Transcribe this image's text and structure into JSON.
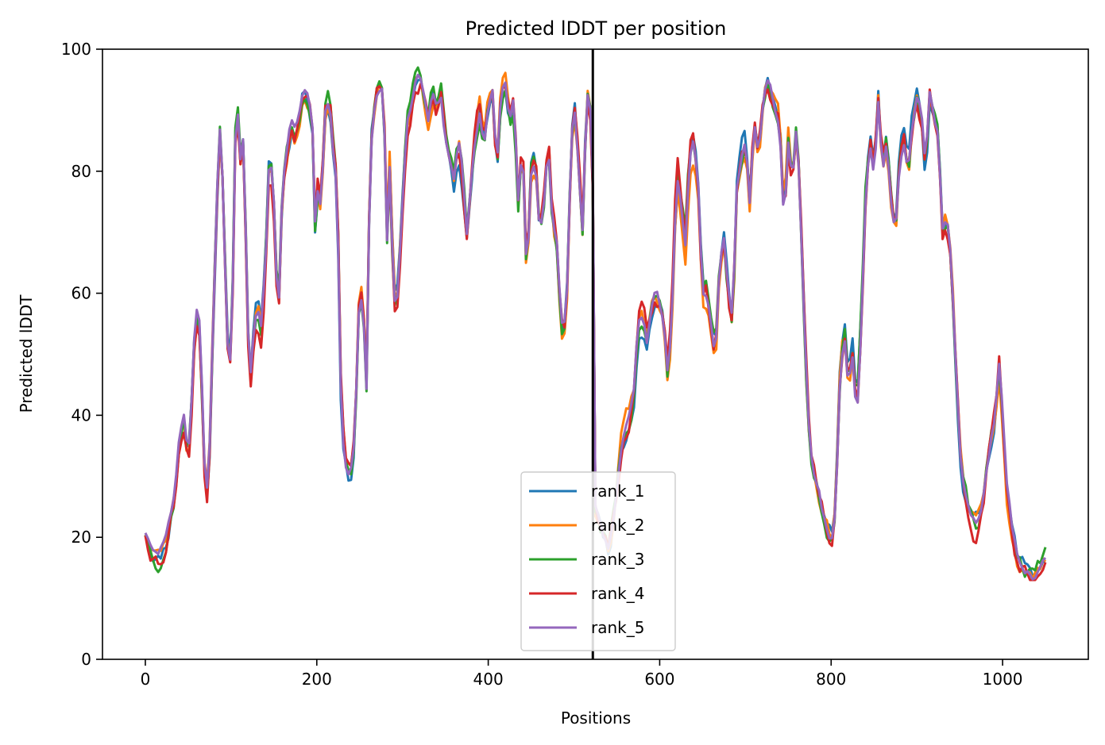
{
  "chart_data": {
    "type": "line",
    "title": "Predicted lDDT per position",
    "xlabel": "Positions",
    "ylabel": "Predicted lDDT",
    "xlim": [
      -50,
      1100
    ],
    "ylim": [
      0,
      100
    ],
    "x_ticks": [
      0,
      200,
      400,
      600,
      800,
      1000
    ],
    "y_ticks": [
      0,
      20,
      40,
      60,
      80,
      100
    ],
    "chain_boundary_x": 522,
    "legend_placement": "lower-center",
    "grid": false,
    "colors": {
      "rank_1": "#1f77b4",
      "rank_2": "#ff7f0e",
      "rank_3": "#2ca02c",
      "rank_4": "#d62728",
      "rank_5": "#9467bd",
      "boundary": "#000000"
    },
    "base_profile": [
      [
        0,
        21
      ],
      [
        5,
        19
      ],
      [
        10,
        18
      ],
      [
        15,
        17
      ],
      [
        20,
        18
      ],
      [
        25,
        20
      ],
      [
        30,
        24
      ],
      [
        35,
        28
      ],
      [
        40,
        37
      ],
      [
        45,
        40
      ],
      [
        50,
        33
      ],
      [
        55,
        45
      ],
      [
        58,
        56
      ],
      [
        62,
        58
      ],
      [
        65,
        50
      ],
      [
        68,
        33
      ],
      [
        72,
        28
      ],
      [
        75,
        35
      ],
      [
        80,
        60
      ],
      [
        85,
        82
      ],
      [
        88,
        88
      ],
      [
        92,
        70
      ],
      [
        95,
        55
      ],
      [
        98,
        45
      ],
      [
        102,
        62
      ],
      [
        105,
        86
      ],
      [
        108,
        90
      ],
      [
        112,
        80
      ],
      [
        115,
        88
      ],
      [
        118,
        62
      ],
      [
        122,
        45
      ],
      [
        125,
        52
      ],
      [
        130,
        58
      ],
      [
        135,
        55
      ],
      [
        140,
        65
      ],
      [
        145,
        85
      ],
      [
        150,
        75
      ],
      [
        155,
        55
      ],
      [
        160,
        78
      ],
      [
        165,
        83
      ],
      [
        170,
        88
      ],
      [
        175,
        86
      ],
      [
        180,
        90
      ],
      [
        185,
        94
      ],
      [
        190,
        93
      ],
      [
        195,
        88
      ],
      [
        198,
        72
      ],
      [
        200,
        78
      ],
      [
        205,
        75
      ],
      [
        210,
        90
      ],
      [
        215,
        92
      ],
      [
        218,
        85
      ],
      [
        222,
        80
      ],
      [
        225,
        68
      ],
      [
        228,
        45
      ],
      [
        232,
        33
      ],
      [
        238,
        30
      ],
      [
        242,
        32
      ],
      [
        245,
        40
      ],
      [
        250,
        62
      ],
      [
        255,
        55
      ],
      [
        258,
        45
      ],
      [
        262,
        80
      ],
      [
        265,
        88
      ],
      [
        270,
        93
      ],
      [
        275,
        95
      ],
      [
        278,
        93
      ],
      [
        282,
        70
      ],
      [
        285,
        82
      ],
      [
        290,
        60
      ],
      [
        293,
        57
      ],
      [
        296,
        64
      ],
      [
        300,
        75
      ],
      [
        305,
        88
      ],
      [
        310,
        90
      ],
      [
        315,
        95
      ],
      [
        320,
        96
      ],
      [
        325,
        92
      ],
      [
        330,
        88
      ],
      [
        335,
        93
      ],
      [
        340,
        90
      ],
      [
        345,
        92
      ],
      [
        350,
        85
      ],
      [
        355,
        82
      ],
      [
        360,
        78
      ],
      [
        365,
        85
      ],
      [
        370,
        80
      ],
      [
        375,
        70
      ],
      [
        380,
        78
      ],
      [
        385,
        86
      ],
      [
        390,
        90
      ],
      [
        395,
        84
      ],
      [
        400,
        90
      ],
      [
        405,
        92
      ],
      [
        410,
        80
      ],
      [
        415,
        93
      ],
      [
        420,
        94
      ],
      [
        425,
        88
      ],
      [
        430,
        92
      ],
      [
        435,
        75
      ],
      [
        440,
        85
      ],
      [
        445,
        62
      ],
      [
        450,
        80
      ],
      [
        455,
        82
      ],
      [
        460,
        70
      ],
      [
        465,
        75
      ],
      [
        470,
        85
      ],
      [
        475,
        72
      ],
      [
        480,
        68
      ],
      [
        485,
        55
      ],
      [
        488,
        52
      ],
      [
        492,
        60
      ],
      [
        497,
        85
      ],
      [
        502,
        90
      ],
      [
        505,
        80
      ],
      [
        510,
        70
      ],
      [
        515,
        93
      ],
      [
        520,
        90
      ],
      [
        523,
        72
      ],
      [
        525,
        25
      ],
      [
        530,
        22
      ],
      [
        535,
        20
      ],
      [
        540,
        18
      ],
      [
        545,
        22
      ],
      [
        550,
        28
      ],
      [
        555,
        35
      ],
      [
        560,
        38
      ],
      [
        565,
        40
      ],
      [
        570,
        44
      ],
      [
        575,
        55
      ],
      [
        580,
        56
      ],
      [
        585,
        52
      ],
      [
        590,
        57
      ],
      [
        595,
        60
      ],
      [
        600,
        58
      ],
      [
        605,
        55
      ],
      [
        610,
        45
      ],
      [
        615,
        60
      ],
      [
        620,
        80
      ],
      [
        625,
        75
      ],
      [
        630,
        68
      ],
      [
        635,
        82
      ],
      [
        640,
        85
      ],
      [
        645,
        77
      ],
      [
        650,
        60
      ],
      [
        655,
        60
      ],
      [
        660,
        55
      ],
      [
        665,
        50
      ],
      [
        670,
        65
      ],
      [
        675,
        69
      ],
      [
        680,
        60
      ],
      [
        685,
        55
      ],
      [
        690,
        77
      ],
      [
        695,
        82
      ],
      [
        700,
        85
      ],
      [
        705,
        75
      ],
      [
        710,
        88
      ],
      [
        715,
        83
      ],
      [
        720,
        90
      ],
      [
        725,
        95
      ],
      [
        730,
        93
      ],
      [
        735,
        90
      ],
      [
        740,
        88
      ],
      [
        745,
        72
      ],
      [
        750,
        85
      ],
      [
        755,
        78
      ],
      [
        760,
        88
      ],
      [
        765,
        70
      ],
      [
        770,
        50
      ],
      [
        775,
        35
      ],
      [
        780,
        30
      ],
      [
        785,
        28
      ],
      [
        790,
        24
      ],
      [
        795,
        22
      ],
      [
        800,
        20
      ],
      [
        805,
        25
      ],
      [
        810,
        45
      ],
      [
        815,
        55
      ],
      [
        820,
        45
      ],
      [
        825,
        50
      ],
      [
        830,
        40
      ],
      [
        835,
        55
      ],
      [
        840,
        75
      ],
      [
        845,
        85
      ],
      [
        850,
        80
      ],
      [
        855,
        92
      ],
      [
        860,
        80
      ],
      [
        865,
        85
      ],
      [
        870,
        75
      ],
      [
        875,
        70
      ],
      [
        880,
        82
      ],
      [
        885,
        85
      ],
      [
        890,
        80
      ],
      [
        895,
        88
      ],
      [
        900,
        92
      ],
      [
        905,
        90
      ],
      [
        910,
        80
      ],
      [
        915,
        92
      ],
      [
        920,
        88
      ],
      [
        925,
        85
      ],
      [
        930,
        70
      ],
      [
        935,
        72
      ],
      [
        940,
        65
      ],
      [
        945,
        50
      ],
      [
        950,
        35
      ],
      [
        955,
        28
      ],
      [
        960,
        25
      ],
      [
        965,
        23
      ],
      [
        970,
        22
      ],
      [
        975,
        25
      ],
      [
        980,
        30
      ],
      [
        985,
        35
      ],
      [
        988,
        38
      ],
      [
        992,
        40
      ],
      [
        995,
        50
      ],
      [
        998,
        45
      ],
      [
        1002,
        35
      ],
      [
        1005,
        28
      ],
      [
        1010,
        22
      ],
      [
        1015,
        18
      ],
      [
        1020,
        16
      ],
      [
        1025,
        15
      ],
      [
        1030,
        15
      ],
      [
        1035,
        14
      ],
      [
        1040,
        15
      ],
      [
        1045,
        16
      ],
      [
        1050,
        17
      ]
    ],
    "series": [
      {
        "name": "rank_1",
        "seed": 11,
        "jitter": 2.6
      },
      {
        "name": "rank_2",
        "seed": 23,
        "jitter": 2.4
      },
      {
        "name": "rank_3",
        "seed": 37,
        "jitter": 2.5
      },
      {
        "name": "rank_4",
        "seed": 53,
        "jitter": 3.0
      },
      {
        "name": "rank_5",
        "seed": 71,
        "jitter": 1.2
      }
    ]
  }
}
